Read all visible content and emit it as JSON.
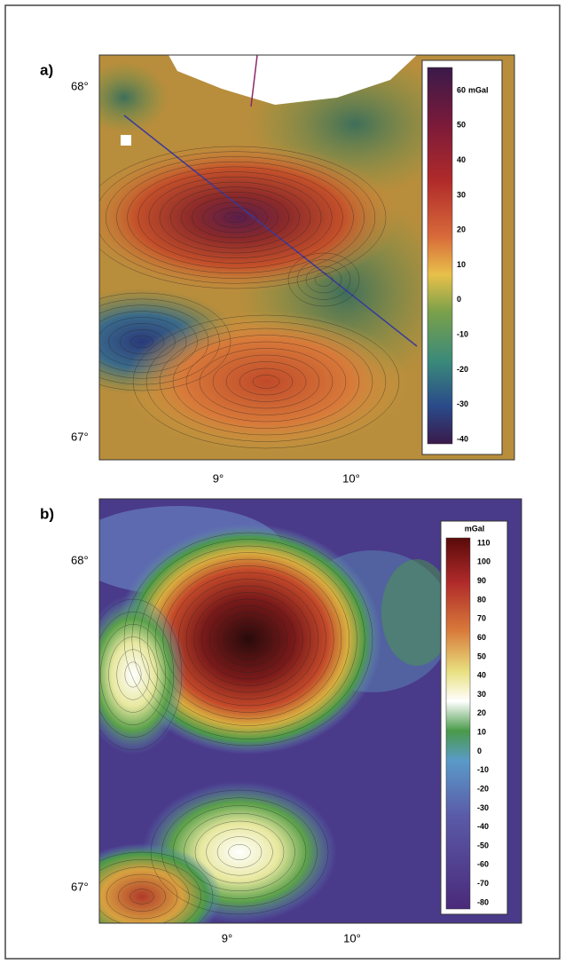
{
  "panels": [
    {
      "label": "a)",
      "lat_labels": [
        "68°",
        "67°"
      ],
      "lon_labels": [
        "9°",
        "10°"
      ],
      "colorbar": {
        "unit": "mGal",
        "ticks": [
          "60",
          "50",
          "40",
          "30",
          "20",
          "10",
          "0",
          "-10",
          "-20",
          "-30",
          "-40"
        ]
      }
    },
    {
      "label": "b)",
      "lat_labels": [
        "68°",
        "67°"
      ],
      "lon_labels": [
        "9°",
        "10°"
      ],
      "colorbar": {
        "unit": "mGal",
        "ticks": [
          "110",
          "100",
          "90",
          "80",
          "70",
          "60",
          "50",
          "40",
          "30",
          "20",
          "10",
          "0",
          "-10",
          "-20",
          "-30",
          "-40",
          "-50",
          "-60",
          "-70",
          "-80"
        ]
      }
    }
  ]
}
